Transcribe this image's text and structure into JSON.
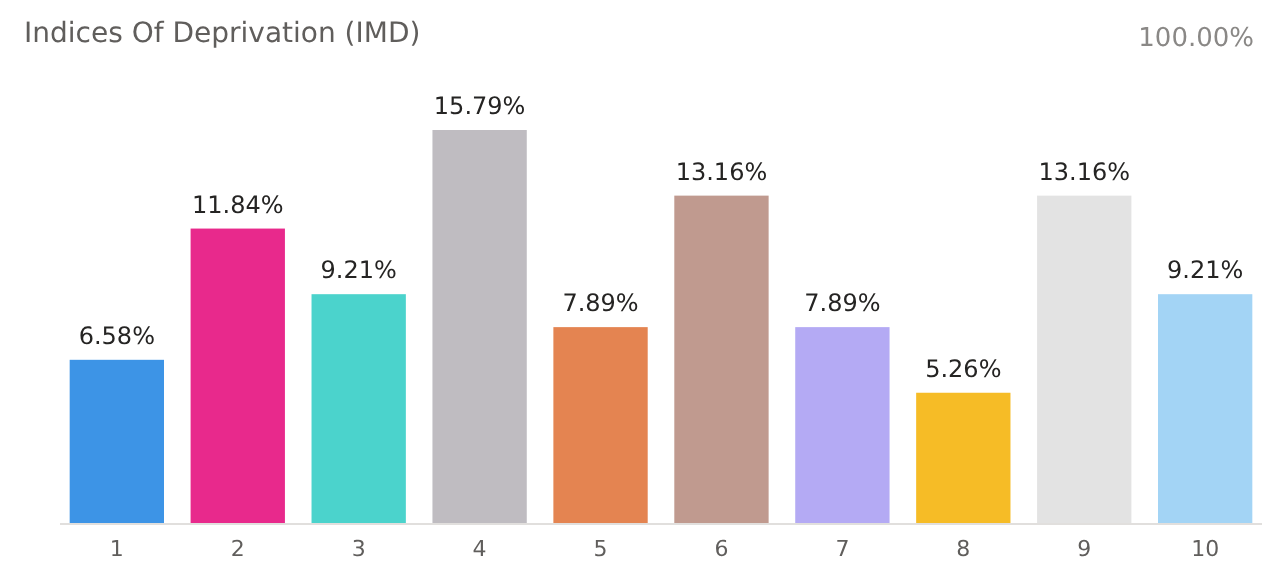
{
  "chart_data": {
    "type": "bar",
    "title": "Indices Of Deprivation (IMD)",
    "categories": [
      "1",
      "2",
      "3",
      "4",
      "5",
      "6",
      "7",
      "8",
      "9",
      "10"
    ],
    "values": [
      6.58,
      11.84,
      9.21,
      15.79,
      7.89,
      13.16,
      7.89,
      5.26,
      13.16,
      9.21
    ],
    "colors": [
      "#3d94e6",
      "#e8298c",
      "#4bd3cc",
      "#bfbcc1",
      "#e48451",
      "#c09a8f",
      "#b4aaf4",
      "#f6bc26",
      "#e3e3e3",
      "#a3d4f5"
    ],
    "value_labels": [
      "6.58%",
      "11.84%",
      "9.21%",
      "15.79%",
      "7.89%",
      "13.16%",
      "7.89%",
      "5.26%",
      "13.16%",
      "9.21%"
    ],
    "annotations": [
      "100.00%"
    ]
  }
}
